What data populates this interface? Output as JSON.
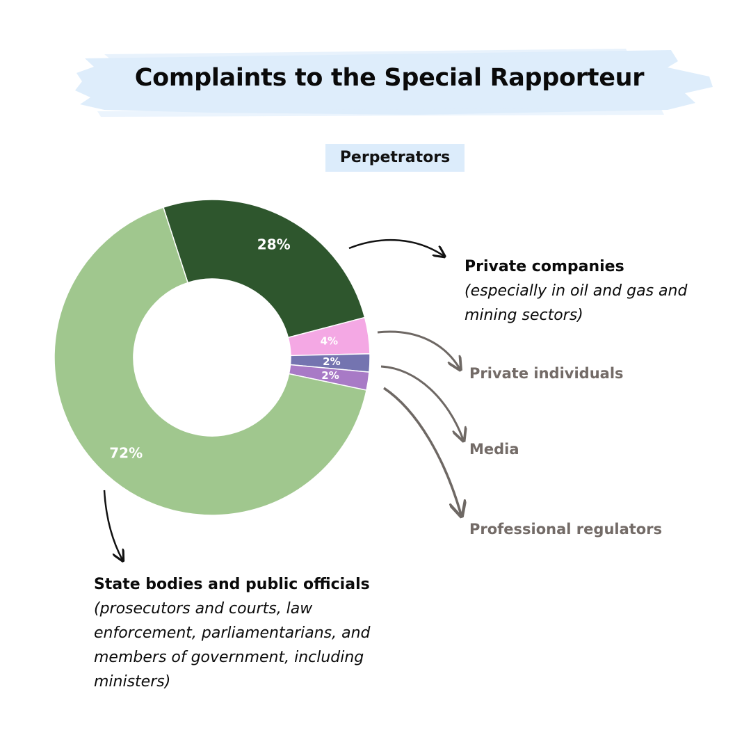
{
  "chart_data": {
    "type": "pie",
    "title": "Complaints to the Special Rapporteur",
    "subtitle": "Perpetrators",
    "slices": [
      {
        "name": "Private companies",
        "description": "(especially in oil and gas and mining sectors)",
        "value": 28,
        "label": "28%",
        "color": "#2e562d"
      },
      {
        "name": "Private individuals",
        "description": "",
        "value": 4,
        "label": "4%",
        "color": "#f4a8e4"
      },
      {
        "name": "Media",
        "description": "",
        "value": 2,
        "label": "2%",
        "color": "#7474b0"
      },
      {
        "name": "Professional regulators",
        "description": "",
        "value": 2,
        "label": "2%",
        "color": "#a87ac6"
      },
      {
        "name": "State bodies and public officials",
        "description": "(prosecutors and courts, law enforcement, parliamentarians, and members of government, including ministers)",
        "value": 72,
        "label": "72%",
        "color": "#a0c78e"
      }
    ],
    "legend": "callouts"
  }
}
